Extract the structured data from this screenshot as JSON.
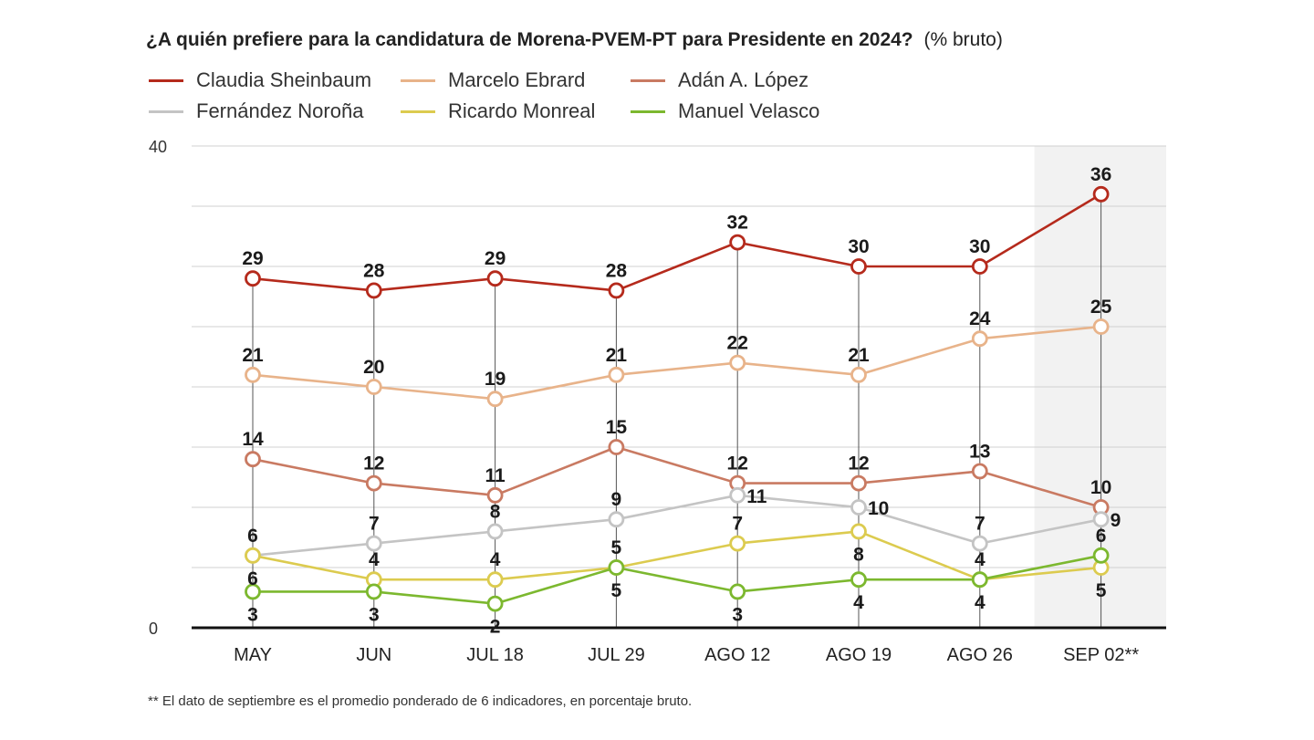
{
  "title": "¿A quién prefiere para la candidatura de Morena-PVEM-PT para Presidente en 2024?",
  "unit_label": "(% bruto)",
  "footnote": "** El dato de septiembre es el promedio ponderado de 6 indicadores, en porcentaje bruto.",
  "chart_data": {
    "type": "line",
    "title": "¿A quién prefiere para la candidatura de Morena-PVEM-PT para Presidente en 2024?",
    "subtitle": "(% bruto)",
    "categories": [
      "MAY",
      "JUN",
      "JUL 18",
      "JUL 29",
      "AGO 12",
      "AGO 19",
      "AGO 26",
      "SEP 02**"
    ],
    "ylim": [
      0,
      40
    ],
    "yticks_labeled": [
      0,
      40
    ],
    "gridlines": [
      5,
      10,
      15,
      20,
      25,
      30,
      35,
      40
    ],
    "legend_position": "top",
    "highlighted_category": "SEP 02**",
    "series": [
      {
        "name": "Claudia Sheinbaum",
        "color": "#b52a1c",
        "values": [
          29,
          28,
          29,
          28,
          32,
          30,
          30,
          36
        ]
      },
      {
        "name": "Marcelo Ebrard",
        "color": "#e8b38a",
        "values": [
          21,
          20,
          19,
          21,
          22,
          21,
          24,
          25
        ]
      },
      {
        "name": "Adán A. López",
        "color": "#c97a62",
        "values": [
          14,
          12,
          11,
          15,
          12,
          12,
          13,
          10
        ]
      },
      {
        "name": "Fernández Noroña",
        "color": "#c4c4c4",
        "values": [
          6,
          7,
          8,
          9,
          11,
          10,
          7,
          9
        ]
      },
      {
        "name": "Ricardo Monreal",
        "color": "#dccb4f",
        "values": [
          6,
          4,
          4,
          5,
          7,
          8,
          4,
          5
        ]
      },
      {
        "name": "Manuel Velasco",
        "color": "#7cb82f",
        "values": [
          3,
          3,
          2,
          5,
          3,
          4,
          4,
          6
        ]
      }
    ]
  }
}
